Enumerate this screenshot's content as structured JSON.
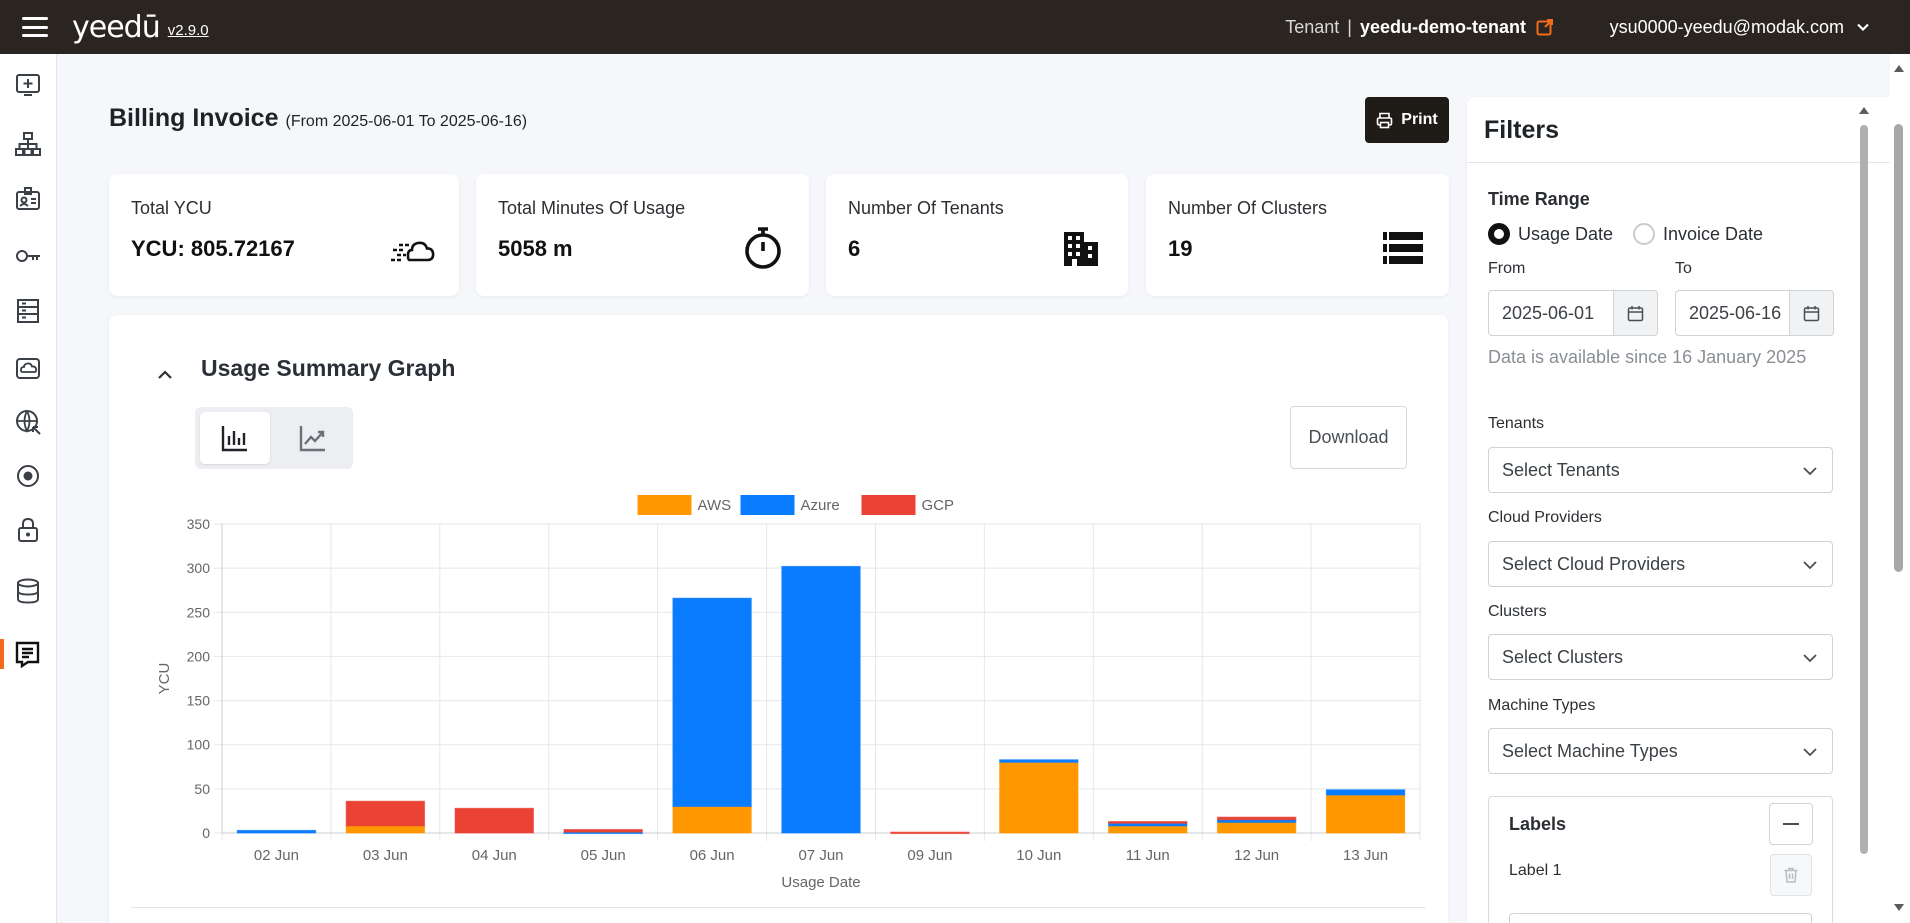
{
  "header": {
    "app_name": "yeedū",
    "version": "v2.9.0",
    "tenant_label": "Tenant",
    "tenant_sep": "|",
    "tenant_name": "yeedu-demo-tenant",
    "user_email": "ysu0000-yeedu@modak.com"
  },
  "sidebar": {
    "items": [
      {
        "icon": "add-workspace-icon"
      },
      {
        "icon": "sitemap-icon"
      },
      {
        "icon": "id-card-icon"
      },
      {
        "icon": "key-icon"
      },
      {
        "icon": "building-rack-icon"
      },
      {
        "icon": "cloud-box-icon"
      },
      {
        "icon": "globe-network-icon"
      },
      {
        "icon": "target-icon"
      },
      {
        "icon": "lock-icon"
      },
      {
        "icon": "database-icon"
      },
      {
        "icon": "billing-receipt-icon",
        "active": true
      }
    ],
    "accent_color": "#f26b1d"
  },
  "page": {
    "title": "Billing Invoice",
    "range": "(From 2025-06-01 To 2025-06-16)",
    "print_label": "Print"
  },
  "cards": [
    {
      "title": "Total YCU",
      "value": "YCU: 805.72167",
      "icon": "fast-cloud-icon"
    },
    {
      "title": "Total Minutes Of Usage",
      "value": "5058 m",
      "icon": "stopwatch-icon"
    },
    {
      "title": "Number Of Tenants",
      "value": "6",
      "icon": "building-icon"
    },
    {
      "title": "Number Of Clusters",
      "value": "19",
      "icon": "server-list-icon"
    }
  ],
  "graph": {
    "title": "Usage Summary Graph",
    "download_label": "Download"
  },
  "chart_data": {
    "type": "bar",
    "stacked": true,
    "categories": [
      "02 Jun",
      "03 Jun",
      "04 Jun",
      "05 Jun",
      "06 Jun",
      "07 Jun",
      "09 Jun",
      "10 Jun",
      "11 Jun",
      "12 Jun",
      "13 Jun"
    ],
    "series": [
      {
        "name": "AWS",
        "color": "#ff9800",
        "values": [
          0,
          8,
          0,
          0,
          30,
          0,
          0,
          80,
          8,
          12,
          43
        ]
      },
      {
        "name": "Azure",
        "color": "#0a7cff",
        "values": [
          3,
          0,
          0,
          1,
          236,
          302,
          0,
          3,
          3,
          3,
          6
        ]
      },
      {
        "name": "GCP",
        "color": "#ea4335",
        "values": [
          0,
          28,
          28,
          3,
          0,
          0,
          1,
          0,
          2,
          3,
          0
        ]
      }
    ],
    "xlabel": "Usage Date",
    "ylabel": "YCU",
    "ylim": [
      0,
      350
    ],
    "yticks": [
      0,
      50,
      100,
      150,
      200,
      250,
      300,
      350
    ],
    "legend_position": "top-center",
    "grid": true
  },
  "filters": {
    "title": "Filters",
    "time_range_label": "Time Range",
    "radio_usage": "Usage Date",
    "radio_invoice": "Invoice Date",
    "from_label": "From",
    "to_label": "To",
    "from_value": "2025-06-01",
    "to_value": "2025-06-16",
    "availability_note": "Data is available since 16 January 2025",
    "tenants_label": "Tenants",
    "tenants_placeholder": "Select Tenants",
    "cloud_label": "Cloud Providers",
    "cloud_placeholder": "Select Cloud Providers",
    "clusters_label": "Clusters",
    "clusters_placeholder": "Select Clusters",
    "machine_label": "Machine Types",
    "machine_placeholder": "Select Machine Types",
    "labels_title": "Labels",
    "label_1": "Label 1"
  }
}
